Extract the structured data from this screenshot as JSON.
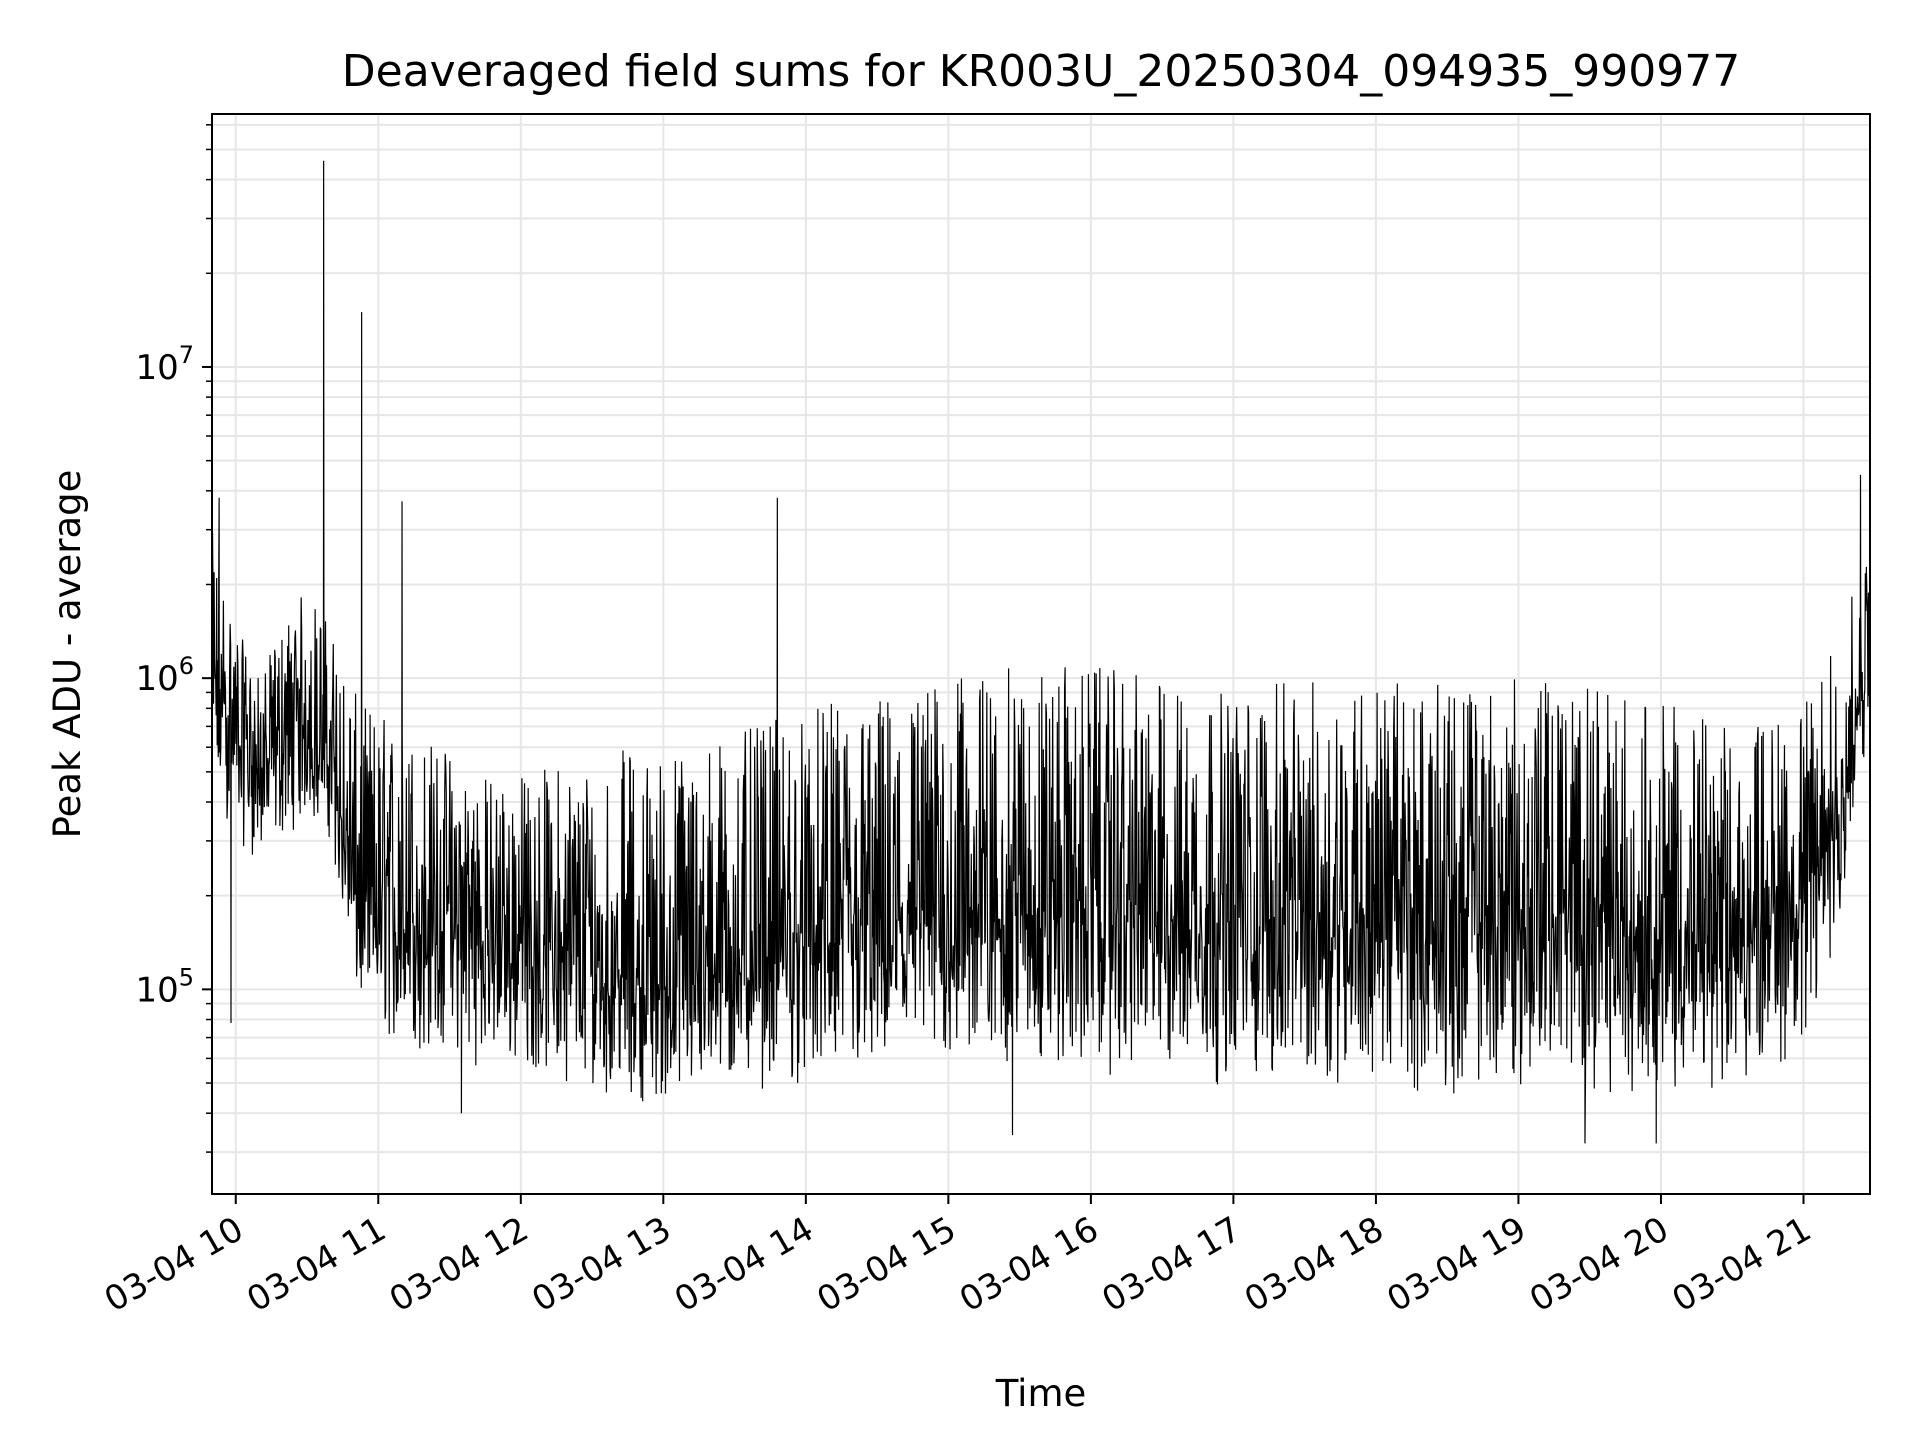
{
  "chart_data": {
    "type": "line",
    "title": "Deaveraged field sums for KR003U_20250304_094935_990977",
    "xlabel": "Time",
    "ylabel": "Peak ADU - average",
    "x_tick_labels": [
      "03-04 10",
      "03-04 11",
      "03-04 12",
      "03-04 13",
      "03-04 14",
      "03-04 15",
      "03-04 16",
      "03-04 17",
      "03-04 18",
      "03-04 19",
      "03-04 20",
      "03-04 21"
    ],
    "x_axis": {
      "type": "time",
      "start": "2025-03-04 09:50",
      "end": "2025-03-04 21:28"
    },
    "y_axis": {
      "scale": "log",
      "min": 22000,
      "max": 65000000,
      "ticks": [
        100000,
        1000000,
        10000000
      ]
    },
    "y_tick_labels": [
      {
        "base": "10",
        "exp": "5"
      },
      {
        "base": "10",
        "exp": "6"
      },
      {
        "base": "10",
        "exp": "7"
      }
    ],
    "grid": true,
    "line_color": "#000000",
    "series": [
      {
        "x": [
          "2025-03-04 09:50",
          "2025-03-04 10:00",
          "2025-03-04 10:10",
          "2025-03-04 10:20",
          "2025-03-04 10:30",
          "2025-03-04 10:40",
          "2025-03-04 10:50",
          "2025-03-04 11:00",
          "2025-03-04 11:15",
          "2025-03-04 11:30",
          "2025-03-04 11:45",
          "2025-03-04 12:00",
          "2025-03-04 12:20",
          "2025-03-04 12:40",
          "2025-03-04 13:00",
          "2025-03-04 13:20",
          "2025-03-04 13:40",
          "2025-03-04 14:00",
          "2025-03-04 14:30",
          "2025-03-04 15:00",
          "2025-03-04 15:30",
          "2025-03-04 16:00",
          "2025-03-04 16:30",
          "2025-03-04 17:00",
          "2025-03-04 17:30",
          "2025-03-04 18:00",
          "2025-03-04 18:30",
          "2025-03-04 19:00",
          "2025-03-04 19:30",
          "2025-03-04 20:00",
          "2025-03-04 20:30",
          "2025-03-04 21:00",
          "2025-03-04 21:15",
          "2025-03-04 21:28"
        ],
        "y": [
          900000,
          700000,
          500000,
          650000,
          700000,
          550000,
          200000,
          180000,
          160000,
          170000,
          150000,
          140000,
          130000,
          110000,
          100000,
          120000,
          130000,
          140000,
          150000,
          170000,
          180000,
          190000,
          180000,
          160000,
          170000,
          180000,
          160000,
          170000,
          160000,
          150000,
          140000,
          200000,
          350000,
          1200000
        ],
        "y_envelope_low": [
          400000,
          300000,
          250000,
          300000,
          350000,
          300000,
          90000,
          70000,
          60000,
          60000,
          55000,
          55000,
          50000,
          45000,
          42000,
          45000,
          47000,
          48000,
          50000,
          55000,
          55000,
          52000,
          50000,
          48000,
          50000,
          48000,
          45000,
          48000,
          47000,
          45000,
          48000,
          60000,
          150000,
          700000
        ],
        "y_envelope_high": [
          3000000,
          1500000,
          1000000,
          1500000,
          2000000,
          1500000,
          900000,
          800000,
          700000,
          600000,
          500000,
          500000,
          550000,
          600000,
          600000,
          650000,
          700000,
          800000,
          900000,
          1000000,
          1100000,
          1100000,
          1000000,
          900000,
          1000000,
          1000000,
          950000,
          1000000,
          950000,
          850000,
          700000,
          800000,
          1500000,
          2500000
        ],
        "spikes": [
          {
            "x": "2025-03-04 10:37",
            "y": 46000000
          },
          {
            "x": "2025-03-04 10:53",
            "y": 15000000
          },
          {
            "x": "2025-03-04 11:10",
            "y": 3700000
          },
          {
            "x": "2025-03-04 13:48",
            "y": 3800000
          },
          {
            "x": "2025-03-04 09:53",
            "y": 3800000
          },
          {
            "x": "2025-03-04 21:24",
            "y": 4500000
          },
          {
            "x": "2025-03-04 09:58",
            "y": 78000
          },
          {
            "x": "2025-03-04 11:35",
            "y": 40000
          },
          {
            "x": "2025-03-04 15:27",
            "y": 34000
          },
          {
            "x": "2025-03-04 19:28",
            "y": 32000
          },
          {
            "x": "2025-03-04 19:58",
            "y": 32000
          }
        ]
      }
    ]
  }
}
